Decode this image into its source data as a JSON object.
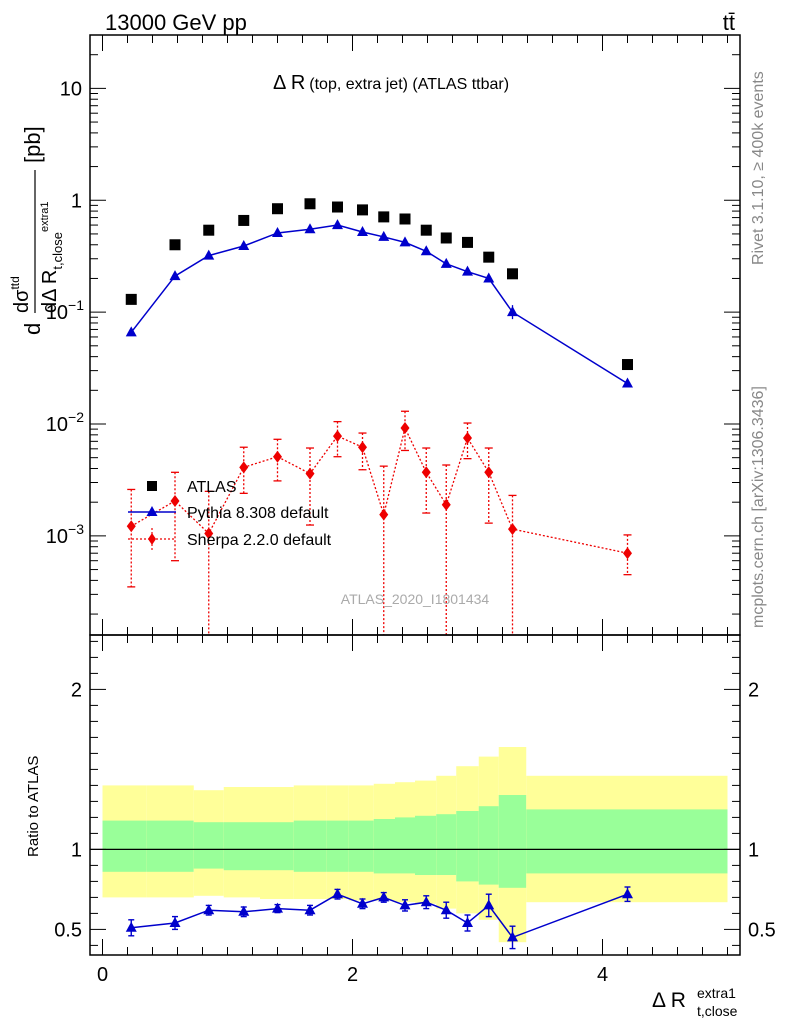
{
  "header": {
    "energy_label": "13000 GeV pp",
    "process_label": "tt̄"
  },
  "side_labels": {
    "rivet": "Rivet 3.1.10, ≥ 400k events",
    "mcplots": "mcplots.cern.ch [arXiv:1306.3436]"
  },
  "watermark": "ATLAS_2020_I1801434",
  "colors": {
    "atlas": "#000000",
    "pythia": "#0000cc",
    "sherpa": "#ee0000",
    "band_inner": "#99ff99",
    "band_outer": "#ffff99"
  },
  "chart_data": [
    {
      "type": "scatter",
      "title": "Δ R (top, extra jet) (ATLAS ttbar)",
      "title_main": "Δ R",
      "title_sub": "(top, extra jet) (ATLAS ttbar)",
      "ylabel": "dσ^ttd / dΔ R t,close^extra1 [pb]",
      "y_scale": "log",
      "ylim": [
        0.00013,
        30
      ],
      "xlim": [
        -0.1,
        5.1
      ],
      "y_tick_labels": [
        "10",
        "1",
        "10−1",
        "10−2",
        "10−3"
      ],
      "legend_position": "lower-left",
      "series": [
        {
          "name": "ATLAS",
          "x": [
            0.23,
            0.58,
            0.85,
            1.13,
            1.4,
            1.66,
            1.88,
            2.08,
            2.25,
            2.42,
            2.59,
            2.75,
            2.92,
            3.09,
            3.28,
            4.2
          ],
          "y": [
            0.13,
            0.4,
            0.54,
            0.66,
            0.84,
            0.93,
            0.87,
            0.82,
            0.71,
            0.68,
            0.54,
            0.46,
            0.42,
            0.31,
            0.22,
            0.034
          ]
        },
        {
          "name": "Pythia 8.308 default",
          "x": [
            0.23,
            0.58,
            0.85,
            1.13,
            1.4,
            1.66,
            1.88,
            2.08,
            2.25,
            2.42,
            2.59,
            2.75,
            2.92,
            3.09,
            3.28,
            4.2
          ],
          "y": [
            0.066,
            0.21,
            0.32,
            0.39,
            0.51,
            0.55,
            0.6,
            0.52,
            0.47,
            0.42,
            0.35,
            0.27,
            0.23,
            0.2,
            0.1,
            0.023
          ]
        },
        {
          "name": "Sherpa 2.2.0 default",
          "x": [
            0.23,
            0.58,
            0.85,
            1.13,
            1.4,
            1.66,
            1.88,
            2.08,
            2.25,
            2.42,
            2.59,
            2.75,
            2.92,
            3.09,
            3.28,
            4.2
          ],
          "y": [
            0.00122,
            0.00205,
            0.00105,
            0.0041,
            0.0051,
            0.0036,
            0.0078,
            0.0062,
            0.00155,
            0.0092,
            0.0037,
            0.0019,
            0.0075,
            0.0037,
            0.00115,
            0.0007
          ],
          "y_low": [
            0.00035,
            0.0006,
            0.0001,
            0.0024,
            0.0031,
            0.00125,
            0.0051,
            0.0039,
            0.0001,
            0.0058,
            0.0016,
            0.0001,
            0.0049,
            0.0013,
            0.0001,
            0.00045
          ],
          "y_high": [
            0.0026,
            0.0037,
            0.0025,
            0.0062,
            0.0073,
            0.0061,
            0.0105,
            0.0083,
            0.0042,
            0.013,
            0.0061,
            0.0043,
            0.0102,
            0.0061,
            0.0023,
            0.00102
          ]
        }
      ]
    },
    {
      "type": "scatter",
      "ylabel": "Ratio to ATLAS",
      "xlabel": "Δ R t,close^extra1",
      "xlabel_main": "Δ R",
      "xlabel_sub": "t,close",
      "xlabel_sup": "extra1",
      "ylim": [
        0.34,
        2.34
      ],
      "xlim": [
        -0.1,
        5.1
      ],
      "x_ticks": [
        0,
        2,
        4
      ],
      "y_ticks": [
        0.5,
        1,
        2
      ],
      "reference_line": 1,
      "bands": {
        "edges": [
          0.0,
          0.35,
          0.73,
          0.97,
          1.26,
          1.53,
          1.79,
          1.97,
          2.17,
          2.34,
          2.5,
          2.67,
          2.83,
          3.01,
          3.17,
          3.39,
          5.0
        ],
        "inner_low": [
          0.86,
          0.86,
          0.88,
          0.87,
          0.87,
          0.86,
          0.86,
          0.86,
          0.85,
          0.85,
          0.84,
          0.84,
          0.8,
          0.78,
          0.76,
          0.85
        ],
        "inner_high": [
          1.18,
          1.18,
          1.17,
          1.17,
          1.17,
          1.18,
          1.18,
          1.18,
          1.19,
          1.2,
          1.21,
          1.22,
          1.24,
          1.27,
          1.34,
          1.25
        ],
        "outer_low": [
          0.7,
          0.7,
          0.71,
          0.7,
          0.69,
          0.69,
          0.69,
          0.68,
          0.68,
          0.67,
          0.66,
          0.63,
          0.6,
          0.56,
          0.42,
          0.67
        ],
        "outer_high": [
          1.4,
          1.4,
          1.37,
          1.39,
          1.39,
          1.4,
          1.4,
          1.4,
          1.41,
          1.42,
          1.43,
          1.46,
          1.52,
          1.58,
          1.64,
          1.46
        ]
      },
      "series": [
        {
          "name": "Pythia 8.308 default",
          "x": [
            0.23,
            0.58,
            0.85,
            1.13,
            1.4,
            1.66,
            1.88,
            2.08,
            2.25,
            2.42,
            2.59,
            2.75,
            2.92,
            3.09,
            3.28,
            4.2
          ],
          "y": [
            0.51,
            0.54,
            0.62,
            0.61,
            0.63,
            0.62,
            0.72,
            0.66,
            0.7,
            0.65,
            0.67,
            0.62,
            0.54,
            0.65,
            0.45,
            0.72
          ],
          "err": [
            0.05,
            0.04,
            0.03,
            0.03,
            0.025,
            0.03,
            0.03,
            0.03,
            0.03,
            0.035,
            0.04,
            0.05,
            0.05,
            0.07,
            0.07,
            0.045
          ]
        }
      ]
    }
  ]
}
